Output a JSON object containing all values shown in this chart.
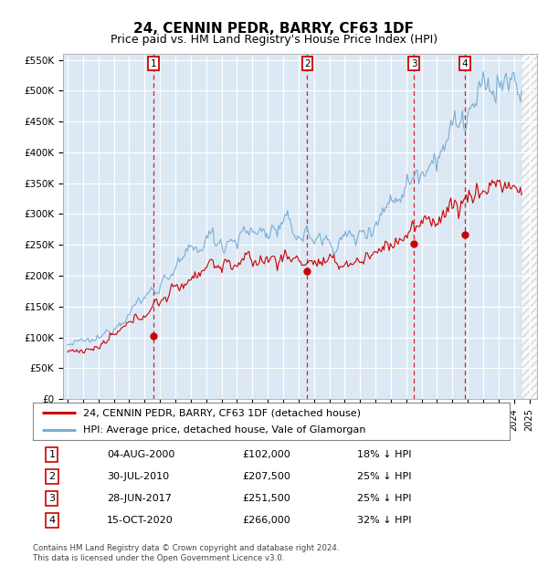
{
  "title": "24, CENNIN PEDR, BARRY, CF63 1DF",
  "subtitle": "Price paid vs. HM Land Registry's House Price Index (HPI)",
  "hpi_color": "#7aaed6",
  "price_color": "#cc0000",
  "bg_color": "#dce9f5",
  "grid_color": "#ffffff",
  "legend_label_price": "24, CENNIN PEDR, BARRY, CF63 1DF (detached house)",
  "legend_label_hpi": "HPI: Average price, detached house, Vale of Glamorgan",
  "ylim": [
    0,
    560000
  ],
  "yticks": [
    0,
    50000,
    100000,
    150000,
    200000,
    250000,
    300000,
    350000,
    400000,
    450000,
    500000,
    550000
  ],
  "ytick_labels": [
    "£0",
    "£50K",
    "£100K",
    "£150K",
    "£200K",
    "£250K",
    "£300K",
    "£350K",
    "£400K",
    "£450K",
    "£500K",
    "£550K"
  ],
  "xlim_start": 1995,
  "xlim_end": 2025.5,
  "data_end": 2024.5,
  "transactions": [
    {
      "num": 1,
      "date": "04-AUG-2000",
      "price": 102000,
      "pct": "18% ↓ HPI",
      "x_year": 2000.59
    },
    {
      "num": 2,
      "date": "30-JUL-2010",
      "price": 207500,
      "pct": "25% ↓ HPI",
      "x_year": 2010.57
    },
    {
      "num": 3,
      "date": "28-JUN-2017",
      "price": 251500,
      "pct": "25% ↓ HPI",
      "x_year": 2017.49
    },
    {
      "num": 4,
      "date": "15-OCT-2020",
      "price": 266000,
      "pct": "32% ↓ HPI",
      "x_year": 2020.79
    }
  ],
  "footer": "Contains HM Land Registry data © Crown copyright and database right 2024.\nThis data is licensed under the Open Government Licence v3.0.",
  "title_fontsize": 11,
  "subtitle_fontsize": 9,
  "tick_fontsize": 7.5,
  "legend_fontsize": 8,
  "table_fontsize": 8
}
